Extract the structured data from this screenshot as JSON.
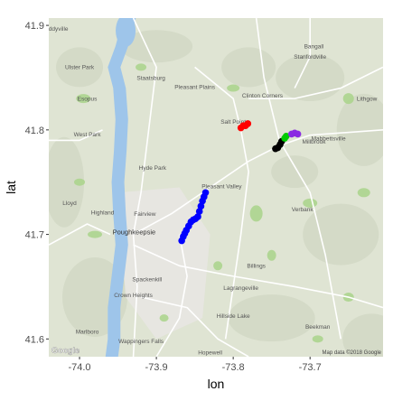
{
  "chart_data": {
    "type": "scatter",
    "title": "",
    "xlabel": "lon",
    "ylabel": "lat",
    "xlim": [
      -74.04,
      -73.605
    ],
    "ylim": [
      41.583,
      41.907
    ],
    "x_ticks": [
      -74.0,
      -73.9,
      -73.8,
      -73.7
    ],
    "x_tick_labels": [
      "-74.0",
      "-73.9",
      "-73.8",
      "-73.7"
    ],
    "y_ticks": [
      41.6,
      41.7,
      41.8,
      41.9
    ],
    "y_tick_labels": [
      "41.6",
      "41.7",
      "41.8",
      "41.9"
    ],
    "grid": false,
    "legend": "none",
    "background": "map",
    "series": [
      {
        "color": "#ff0000",
        "points": [
          [
            -73.79,
            41.802
          ],
          [
            -73.787,
            41.804
          ],
          [
            -73.784,
            41.804
          ],
          [
            -73.781,
            41.806
          ]
        ]
      },
      {
        "color": "#000000",
        "points": [
          [
            -73.745,
            41.782
          ],
          [
            -73.742,
            41.783
          ],
          [
            -73.739,
            41.786
          ],
          [
            -73.737,
            41.789
          ]
        ]
      },
      {
        "color": "#00cc00",
        "points": [
          [
            -73.733,
            41.792
          ],
          [
            -73.731,
            41.794
          ]
        ]
      },
      {
        "color": "#8a2be2",
        "points": [
          [
            -73.724,
            41.796
          ],
          [
            -73.72,
            41.797
          ],
          [
            -73.716,
            41.796
          ]
        ]
      },
      {
        "color": "#0000ff",
        "points": [
          [
            -73.867,
            41.694
          ],
          [
            -73.865,
            41.698
          ],
          [
            -73.863,
            41.701
          ],
          [
            -73.861,
            41.704
          ],
          [
            -73.858,
            41.708
          ],
          [
            -73.855,
            41.712
          ],
          [
            -73.852,
            41.714
          ],
          [
            -73.849,
            41.715
          ],
          [
            -73.846,
            41.717
          ],
          [
            -73.844,
            41.722
          ],
          [
            -73.842,
            41.727
          ],
          [
            -73.84,
            41.732
          ],
          [
            -73.838,
            41.736
          ],
          [
            -73.836,
            41.74
          ]
        ]
      }
    ]
  },
  "map": {
    "labels": [
      {
        "text": "Eddyville",
        "lon": -74.03,
        "lat": 41.895,
        "big": false
      },
      {
        "text": "Ulster Park",
        "lon": -74.0,
        "lat": 41.858,
        "big": false
      },
      {
        "text": "Esopus",
        "lon": -73.99,
        "lat": 41.828,
        "big": false
      },
      {
        "text": "Staatsburg",
        "lon": -73.907,
        "lat": 41.848,
        "big": false
      },
      {
        "text": "Pleasant Plains",
        "lon": -73.85,
        "lat": 41.839,
        "big": false
      },
      {
        "text": "Millbrook",
        "lon": -73.695,
        "lat": 41.787,
        "big": false
      },
      {
        "text": "Hyde Park",
        "lon": -73.905,
        "lat": 41.762,
        "big": false
      },
      {
        "text": "Pleasant Valley",
        "lon": -73.815,
        "lat": 41.744,
        "big": false
      },
      {
        "text": "Verbank",
        "lon": -73.71,
        "lat": 41.722,
        "big": false
      },
      {
        "text": "Fairview",
        "lon": -73.915,
        "lat": 41.718,
        "big": false
      },
      {
        "text": "Highland",
        "lon": -73.97,
        "lat": 41.719,
        "big": false
      },
      {
        "text": "Poughkeepsie",
        "lon": -73.929,
        "lat": 41.7,
        "big": true
      },
      {
        "text": "Billings",
        "lon": -73.77,
        "lat": 41.668,
        "big": false
      },
      {
        "text": "Spackenkill",
        "lon": -73.912,
        "lat": 41.655,
        "big": false
      },
      {
        "text": "Lagrangeville",
        "lon": -73.79,
        "lat": 41.647,
        "big": false
      },
      {
        "text": "Crown Heights",
        "lon": -73.93,
        "lat": 41.64,
        "big": false
      },
      {
        "text": "Hillside Lake",
        "lon": -73.8,
        "lat": 41.62,
        "big": false
      },
      {
        "text": "Beekman",
        "lon": -73.69,
        "lat": 41.61,
        "big": false
      },
      {
        "text": "Marlboro",
        "lon": -73.99,
        "lat": 41.605,
        "big": false
      },
      {
        "text": "Wappingers Falls",
        "lon": -73.92,
        "lat": 41.596,
        "big": false
      },
      {
        "text": "Hopewell",
        "lon": -73.83,
        "lat": 41.585,
        "big": false
      },
      {
        "text": "Stanfordville",
        "lon": -73.7,
        "lat": 41.868,
        "big": false
      },
      {
        "text": "Bangall",
        "lon": -73.695,
        "lat": 41.878,
        "big": false
      },
      {
        "text": "Lithgow",
        "lon": -73.626,
        "lat": 41.828,
        "big": false
      },
      {
        "text": "Mabbettsville",
        "lon": -73.676,
        "lat": 41.79,
        "big": false
      },
      {
        "text": "Clinton Corners",
        "lon": -73.762,
        "lat": 41.831,
        "big": false
      },
      {
        "text": "Salt Point",
        "lon": -73.8,
        "lat": 41.806,
        "big": false
      },
      {
        "text": "West Park",
        "lon": -73.99,
        "lat": 41.794,
        "big": false
      },
      {
        "text": "Lloyd",
        "lon": -74.013,
        "lat": 41.728,
        "big": false
      }
    ],
    "attribution_left": "Google",
    "attribution_right": "Map data ©2018 Google"
  }
}
